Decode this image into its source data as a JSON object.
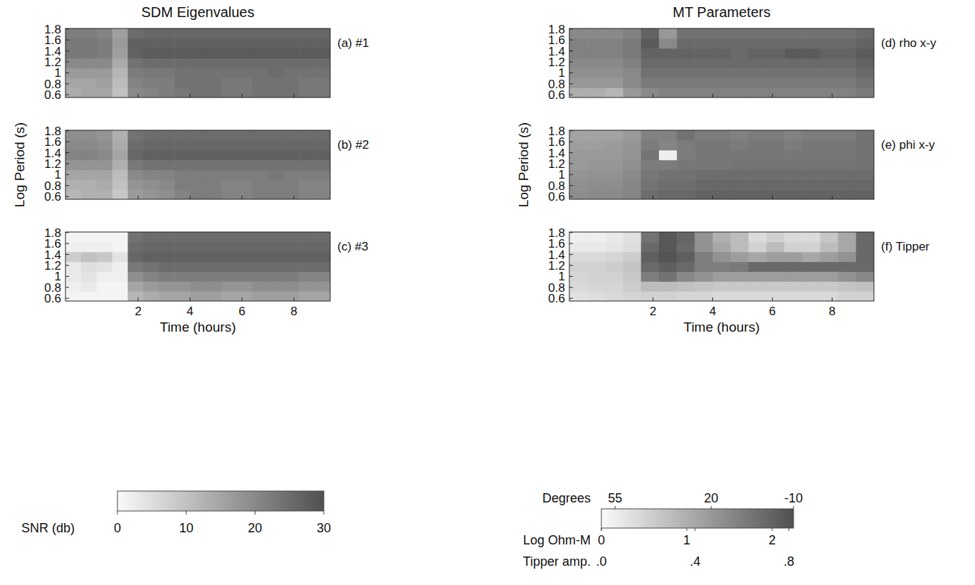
{
  "column_titles": [
    "SDM Eigenvalues",
    "MT Parameters"
  ],
  "chart_data": [
    {
      "type": "heatmap",
      "title": "(a) #1",
      "tick_labels": "y",
      "x": [
        -0.5,
        0.1,
        0.7,
        1.3,
        1.9,
        2.5,
        3.1,
        3.7,
        4.3,
        4.9,
        5.5,
        6.1,
        6.7,
        7.3,
        7.9,
        8.5,
        9.1
      ],
      "y": [
        0.64,
        0.82,
        1.0,
        1.18,
        1.36,
        1.54,
        1.72
      ],
      "xlim": [
        -0.8,
        9.4
      ],
      "ylim": [
        0.55,
        1.81
      ],
      "xticks": [
        2,
        4,
        6,
        8
      ],
      "yticks": [
        0.6,
        0.8,
        1,
        1.2,
        1.4,
        1.6,
        1.8
      ],
      "cells": [
        [
          14,
          15,
          15,
          10,
          20,
          21,
          22,
          23,
          24,
          24,
          23,
          23,
          24,
          24,
          24,
          23,
          23
        ],
        [
          15,
          15,
          16,
          11,
          21,
          22,
          22,
          24,
          24,
          24,
          23,
          23,
          24,
          24,
          24,
          23,
          23
        ],
        [
          17,
          17,
          17,
          12,
          22,
          23,
          23,
          24,
          24,
          24,
          24,
          24,
          24,
          25,
          24,
          24,
          24
        ],
        [
          20,
          20,
          20,
          14,
          24,
          25,
          25,
          25,
          25,
          25,
          25,
          25,
          25,
          25,
          25,
          25,
          25
        ],
        [
          23,
          23,
          22,
          16,
          27,
          28,
          28,
          28,
          28,
          28,
          28,
          28,
          28,
          28,
          28,
          28,
          28
        ],
        [
          23,
          23,
          22,
          17,
          27,
          27,
          27,
          27,
          27,
          27,
          27,
          27,
          27,
          27,
          27,
          27,
          27
        ],
        [
          22,
          22,
          21,
          16,
          25,
          26,
          26,
          26,
          26,
          26,
          26,
          26,
          26,
          26,
          26,
          26,
          26
        ]
      ]
    },
    {
      "type": "heatmap",
      "title": "(b) #2",
      "tick_labels": "y",
      "ylabel": "Log Period (s)",
      "x": [
        -0.5,
        0.1,
        0.7,
        1.3,
        1.9,
        2.5,
        3.1,
        3.7,
        4.3,
        4.9,
        5.5,
        6.1,
        6.7,
        7.3,
        7.9,
        8.5,
        9.1
      ],
      "y": [
        0.64,
        0.82,
        1.0,
        1.18,
        1.36,
        1.54,
        1.72
      ],
      "xlim": [
        -0.8,
        9.4
      ],
      "ylim": [
        0.55,
        1.81
      ],
      "xticks": [
        2,
        4,
        6,
        8
      ],
      "yticks": [
        0.6,
        0.8,
        1,
        1.2,
        1.4,
        1.6,
        1.8
      ],
      "cells": [
        [
          12,
          13,
          13,
          9,
          17,
          18,
          19,
          21,
          22,
          22,
          21,
          21,
          22,
          22,
          22,
          21,
          21
        ],
        [
          13,
          13,
          14,
          10,
          18,
          19,
          20,
          22,
          22,
          22,
          21,
          21,
          22,
          22,
          22,
          21,
          21
        ],
        [
          15,
          15,
          15,
          11,
          20,
          21,
          21,
          22,
          22,
          22,
          22,
          22,
          22,
          23,
          22,
          22,
          22
        ],
        [
          18,
          18,
          18,
          13,
          23,
          24,
          24,
          24,
          24,
          24,
          24,
          24,
          24,
          24,
          24,
          24,
          24
        ],
        [
          21,
          21,
          20,
          15,
          26,
          27,
          27,
          27,
          27,
          27,
          27,
          27,
          27,
          27,
          27,
          27,
          27
        ],
        [
          20,
          20,
          19,
          14,
          25,
          26,
          26,
          26,
          26,
          26,
          26,
          26,
          26,
          26,
          26,
          26,
          26
        ],
        [
          19,
          19,
          18,
          13,
          24,
          25,
          25,
          25,
          25,
          25,
          25,
          25,
          25,
          25,
          25,
          25,
          25
        ]
      ]
    },
    {
      "type": "heatmap",
      "title": "(c) #3",
      "xlabel": "Time (hours)",
      "x": [
        -0.5,
        0.1,
        0.7,
        1.3,
        1.9,
        2.5,
        3.1,
        3.7,
        4.3,
        4.9,
        5.5,
        6.1,
        6.7,
        7.3,
        7.9,
        8.5,
        9.1
      ],
      "y": [
        0.64,
        0.82,
        1.0,
        1.18,
        1.36,
        1.54,
        1.72
      ],
      "xlim": [
        -0.8,
        9.4
      ],
      "ylim": [
        0.55,
        1.81
      ],
      "xticks": [
        2,
        4,
        6,
        8
      ],
      "yticks": [
        0.6,
        0.8,
        1,
        1.2,
        1.4,
        1.6,
        1.8
      ],
      "cells": [
        [
          1,
          1,
          1,
          1,
          12,
          14,
          15,
          15,
          16,
          16,
          15,
          15,
          16,
          16,
          16,
          15,
          15
        ],
        [
          2,
          3,
          1,
          1,
          15,
          17,
          18,
          18,
          19,
          19,
          18,
          18,
          19,
          19,
          19,
          18,
          18
        ],
        [
          3,
          4,
          2,
          2,
          19,
          21,
          22,
          22,
          22,
          22,
          22,
          22,
          22,
          22,
          22,
          21,
          21
        ],
        [
          3,
          5,
          4,
          2,
          23,
          24,
          25,
          25,
          25,
          25,
          25,
          25,
          25,
          25,
          25,
          25,
          25
        ],
        [
          8,
          10,
          9,
          4,
          26,
          27,
          27,
          27,
          27,
          27,
          27,
          27,
          27,
          27,
          27,
          27,
          27
        ],
        [
          2,
          2,
          2,
          1,
          25,
          26,
          26,
          26,
          26,
          26,
          26,
          26,
          26,
          26,
          26,
          26,
          26
        ],
        [
          1,
          1,
          1,
          1,
          24,
          25,
          25,
          25,
          25,
          25,
          25,
          25,
          25,
          25,
          25,
          25,
          25
        ]
      ]
    },
    {
      "type": "heatmap",
      "title": "(d) rho x-y",
      "tick_labels": "y",
      "x": [
        -0.5,
        0.1,
        0.7,
        1.3,
        1.9,
        2.5,
        3.1,
        3.7,
        4.3,
        4.9,
        5.5,
        6.1,
        6.7,
        7.3,
        7.9,
        8.5,
        9.1
      ],
      "y": [
        0.64,
        0.82,
        1.0,
        1.18,
        1.36,
        1.54,
        1.72
      ],
      "xlim": [
        -0.8,
        9.4
      ],
      "ylim": [
        0.55,
        1.81
      ],
      "xticks": [
        2,
        4,
        6,
        8
      ],
      "yticks": [
        0.6,
        0.8,
        1,
        1.2,
        1.4,
        1.6,
        1.8
      ],
      "cells": [
        [
          1.0,
          1.0,
          0.9,
          1.3,
          1.5,
          1.6,
          1.6,
          1.6,
          1.6,
          1.6,
          1.6,
          1.6,
          1.6,
          1.6,
          1.6,
          1.6,
          1.7
        ],
        [
          1.3,
          1.3,
          1.3,
          1.5,
          1.7,
          1.7,
          1.7,
          1.7,
          1.7,
          1.7,
          1.7,
          1.7,
          1.7,
          1.7,
          1.7,
          1.7,
          1.8
        ],
        [
          1.4,
          1.4,
          1.4,
          1.5,
          1.8,
          1.8,
          1.8,
          1.8,
          1.8,
          1.8,
          1.8,
          1.8,
          1.8,
          1.8,
          1.8,
          1.8,
          1.9
        ],
        [
          1.5,
          1.5,
          1.5,
          1.6,
          1.9,
          1.9,
          1.9,
          1.9,
          1.9,
          1.9,
          1.9,
          1.9,
          1.9,
          1.9,
          1.9,
          1.9,
          2.0
        ],
        [
          1.6,
          1.6,
          1.6,
          1.7,
          2.0,
          2.0,
          2.0,
          2.0,
          2.0,
          1.9,
          2.0,
          2.0,
          2.1,
          2.1,
          2.0,
          2.0,
          2.1
        ],
        [
          1.6,
          1.6,
          1.6,
          1.7,
          2.1,
          1.5,
          1.9,
          1.9,
          1.9,
          1.9,
          1.9,
          1.9,
          1.9,
          1.9,
          1.9,
          1.9,
          2.0
        ],
        [
          1.5,
          1.5,
          1.5,
          1.6,
          2.0,
          1.3,
          1.8,
          1.8,
          1.8,
          1.8,
          1.8,
          1.8,
          1.8,
          1.8,
          1.8,
          1.8,
          1.9
        ]
      ]
    },
    {
      "type": "heatmap",
      "title": "(e) phi x-y",
      "tick_labels": "y",
      "ylabel": "Log Period (s)",
      "x": [
        -0.5,
        0.1,
        0.7,
        1.3,
        1.9,
        2.5,
        3.1,
        3.7,
        4.3,
        4.9,
        5.5,
        6.1,
        6.7,
        7.3,
        7.9,
        8.5,
        9.1
      ],
      "y": [
        0.64,
        0.82,
        1.0,
        1.18,
        1.36,
        1.54,
        1.72
      ],
      "xlim": [
        -0.8,
        9.4
      ],
      "ylim": [
        0.55,
        1.81
      ],
      "xticks": [
        2,
        4,
        6,
        8
      ],
      "yticks": [
        0.6,
        0.8,
        1,
        1.2,
        1.4,
        1.6,
        1.8
      ],
      "cells": [
        [
          15,
          14,
          14,
          12,
          2,
          0,
          0,
          -2,
          -2,
          -2,
          -2,
          -2,
          -2,
          -2,
          -2,
          -2,
          -2
        ],
        [
          16,
          15,
          15,
          12,
          4,
          2,
          2,
          0,
          0,
          0,
          0,
          0,
          0,
          0,
          0,
          0,
          0
        ],
        [
          18,
          17,
          17,
          14,
          6,
          4,
          4,
          2,
          2,
          2,
          2,
          2,
          2,
          2,
          2,
          2,
          2
        ],
        [
          20,
          19,
          19,
          16,
          8,
          8,
          6,
          6,
          6,
          5,
          5,
          5,
          5,
          5,
          5,
          5,
          4
        ],
        [
          20,
          20,
          20,
          18,
          5,
          55,
          8,
          6,
          6,
          6,
          6,
          6,
          6,
          6,
          6,
          6,
          4
        ],
        [
          22,
          22,
          21,
          18,
          8,
          12,
          8,
          6,
          6,
          8,
          6,
          6,
          8,
          6,
          6,
          6,
          4
        ],
        [
          24,
          24,
          24,
          20,
          10,
          10,
          4,
          8,
          8,
          10,
          8,
          8,
          10,
          8,
          8,
          8,
          4
        ]
      ]
    },
    {
      "type": "heatmap",
      "title": "(f) Tipper",
      "xlabel": "Time (hours)",
      "x": [
        -0.5,
        0.1,
        0.7,
        1.3,
        1.9,
        2.5,
        3.1,
        3.7,
        4.3,
        4.9,
        5.5,
        6.1,
        6.7,
        7.3,
        7.9,
        8.5,
        9.1
      ],
      "y": [
        0.64,
        0.82,
        1.0,
        1.18,
        1.36,
        1.54,
        1.72
      ],
      "xlim": [
        -0.8,
        9.4
      ],
      "ylim": [
        0.55,
        1.81
      ],
      "xticks": [
        2,
        4,
        6,
        8
      ],
      "yticks": [
        0.6,
        0.8,
        1,
        1.2,
        1.4,
        1.6,
        1.8
      ],
      "cells": [
        [
          0.12,
          0.14,
          0.16,
          0.18,
          0.2,
          0.2,
          0.18,
          0.18,
          0.16,
          0.16,
          0.16,
          0.16,
          0.16,
          0.16,
          0.16,
          0.2,
          0.2
        ],
        [
          0.16,
          0.18,
          0.18,
          0.22,
          0.3,
          0.3,
          0.28,
          0.26,
          0.24,
          0.24,
          0.24,
          0.24,
          0.24,
          0.24,
          0.24,
          0.26,
          0.28
        ],
        [
          0.18,
          0.2,
          0.2,
          0.24,
          0.6,
          0.65,
          0.55,
          0.5,
          0.45,
          0.45,
          0.45,
          0.45,
          0.45,
          0.45,
          0.45,
          0.5,
          0.55
        ],
        [
          0.2,
          0.2,
          0.22,
          0.26,
          0.7,
          0.75,
          0.7,
          0.6,
          0.6,
          0.62,
          0.7,
          0.7,
          0.7,
          0.7,
          0.7,
          0.7,
          0.7
        ],
        [
          0.16,
          0.16,
          0.18,
          0.22,
          0.75,
          0.8,
          0.75,
          0.6,
          0.5,
          0.45,
          0.4,
          0.45,
          0.45,
          0.4,
          0.45,
          0.5,
          0.7
        ],
        [
          0.08,
          0.08,
          0.1,
          0.14,
          0.7,
          0.78,
          0.7,
          0.5,
          0.4,
          0.3,
          0.2,
          0.3,
          0.2,
          0.2,
          0.3,
          0.4,
          0.7
        ],
        [
          0.06,
          0.06,
          0.08,
          0.12,
          0.65,
          0.78,
          0.72,
          0.5,
          0.35,
          0.3,
          0.15,
          0.2,
          0.15,
          0.15,
          0.25,
          0.4,
          0.7
        ]
      ]
    },
    {
      "type": "colorbar",
      "label": "SNR (db)",
      "range": [
        0,
        30
      ],
      "ticks": [
        0,
        10,
        20,
        30
      ]
    },
    {
      "type": "colorbar",
      "scales": [
        {
          "label": "Degrees",
          "range": [
            60,
            -10
          ],
          "ticks": [
            55,
            20,
            -10
          ]
        },
        {
          "label": "Log Ohm-M",
          "range": [
            0,
            2.25
          ],
          "ticks": [
            0,
            1,
            2
          ]
        },
        {
          "label": "Tipper amp.",
          "range": [
            0,
            0.82
          ],
          "ticks": [
            {
              "value": 0,
              "label": ".0"
            },
            {
              "value": 0.4,
              "label": ".4"
            },
            {
              "value": 0.8,
              "label": ".8"
            }
          ]
        }
      ]
    }
  ]
}
